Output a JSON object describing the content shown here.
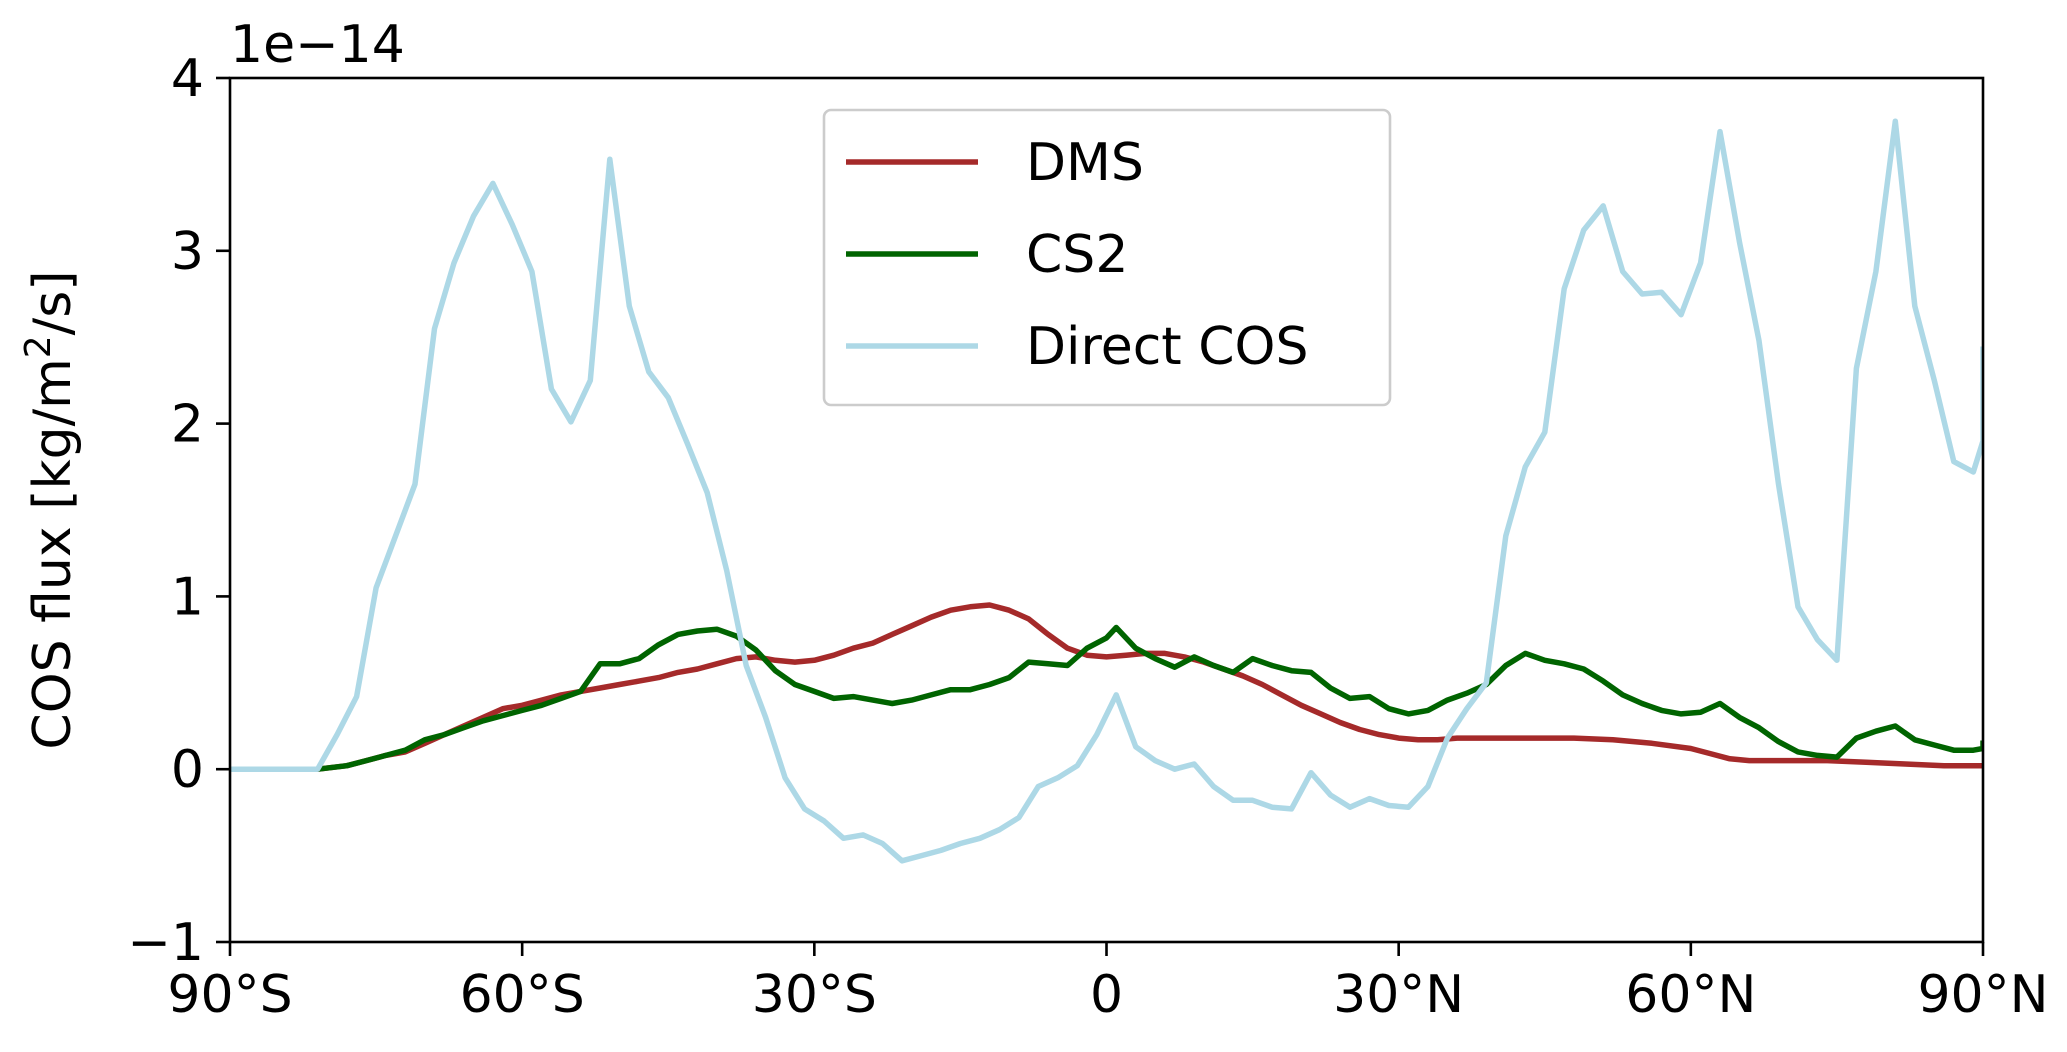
{
  "chart_data": {
    "type": "line",
    "title": "",
    "xlabel": "",
    "ylabel": "COS flux [kg/m",
    "ylabel_sup": "2",
    "ylabel_tail": "/s]",
    "offset_text": "1e−14",
    "xlim": [
      -90,
      90
    ],
    "ylim": [
      -1,
      4
    ],
    "y_scale": "1e-14",
    "legend_position": "upper center",
    "grid": false,
    "x_ticks": [
      {
        "value": -90,
        "label": "90°S"
      },
      {
        "value": -60,
        "label": "60°S"
      },
      {
        "value": -30,
        "label": "30°S"
      },
      {
        "value": 0,
        "label": "0"
      },
      {
        "value": 30,
        "label": "30°N"
      },
      {
        "value": 60,
        "label": "60°N"
      },
      {
        "value": 90,
        "label": "90°N"
      }
    ],
    "y_ticks": [
      {
        "value": -1,
        "label": "−1"
      },
      {
        "value": 0,
        "label": "0"
      },
      {
        "value": 1,
        "label": "1"
      },
      {
        "value": 2,
        "label": "2"
      },
      {
        "value": 3,
        "label": "3"
      },
      {
        "value": 4,
        "label": "4"
      }
    ],
    "series": [
      {
        "name": "DMS",
        "color": "#a52a2a",
        "points": [
          [
            -90,
            0
          ],
          [
            -88,
            0
          ],
          [
            -86,
            0
          ],
          [
            -84,
            0
          ],
          [
            -82,
            0
          ],
          [
            -81,
            0
          ],
          [
            -78,
            0.02
          ],
          [
            -76,
            0.05
          ],
          [
            -74,
            0.08
          ],
          [
            -72,
            0.1
          ],
          [
            -70,
            0.15
          ],
          [
            -68,
            0.2
          ],
          [
            -66,
            0.25
          ],
          [
            -64,
            0.3
          ],
          [
            -62,
            0.35
          ],
          [
            -60,
            0.37
          ],
          [
            -58,
            0.4
          ],
          [
            -56,
            0.43
          ],
          [
            -54,
            0.45
          ],
          [
            -52,
            0.47
          ],
          [
            -50,
            0.49
          ],
          [
            -48,
            0.51
          ],
          [
            -46,
            0.53
          ],
          [
            -44,
            0.56
          ],
          [
            -42,
            0.58
          ],
          [
            -40,
            0.61
          ],
          [
            -38,
            0.64
          ],
          [
            -36,
            0.65
          ],
          [
            -34,
            0.63
          ],
          [
            -32,
            0.62
          ],
          [
            -30,
            0.63
          ],
          [
            -28,
            0.66
          ],
          [
            -26,
            0.7
          ],
          [
            -24,
            0.73
          ],
          [
            -22,
            0.78
          ],
          [
            -20,
            0.83
          ],
          [
            -18,
            0.88
          ],
          [
            -16,
            0.92
          ],
          [
            -14,
            0.94
          ],
          [
            -12,
            0.95
          ],
          [
            -10,
            0.92
          ],
          [
            -8,
            0.87
          ],
          [
            -6,
            0.78
          ],
          [
            -4,
            0.7
          ],
          [
            -2,
            0.66
          ],
          [
            0,
            0.65
          ],
          [
            2,
            0.66
          ],
          [
            4,
            0.67
          ],
          [
            6,
            0.67
          ],
          [
            8,
            0.65
          ],
          [
            10,
            0.62
          ],
          [
            12,
            0.58
          ],
          [
            14,
            0.54
          ],
          [
            16,
            0.49
          ],
          [
            18,
            0.43
          ],
          [
            20,
            0.37
          ],
          [
            22,
            0.32
          ],
          [
            24,
            0.27
          ],
          [
            26,
            0.23
          ],
          [
            28,
            0.2
          ],
          [
            30,
            0.18
          ],
          [
            32,
            0.17
          ],
          [
            34,
            0.17
          ],
          [
            36,
            0.18
          ],
          [
            40,
            0.18
          ],
          [
            44,
            0.18
          ],
          [
            48,
            0.18
          ],
          [
            52,
            0.17
          ],
          [
            56,
            0.15
          ],
          [
            60,
            0.12
          ],
          [
            62,
            0.09
          ],
          [
            64,
            0.06
          ],
          [
            66,
            0.05
          ],
          [
            70,
            0.05
          ],
          [
            74,
            0.05
          ],
          [
            78,
            0.04
          ],
          [
            82,
            0.03
          ],
          [
            86,
            0.02
          ],
          [
            90,
            0.02
          ]
        ]
      },
      {
        "name": "CS2",
        "color": "#006400",
        "points": [
          [
            -90,
            0
          ],
          [
            -88,
            0
          ],
          [
            -86,
            0
          ],
          [
            -84,
            0
          ],
          [
            -82,
            0
          ],
          [
            -81,
            0
          ],
          [
            -78,
            0.02
          ],
          [
            -76,
            0.05
          ],
          [
            -74,
            0.08
          ],
          [
            -72,
            0.11
          ],
          [
            -70,
            0.17
          ],
          [
            -68,
            0.2
          ],
          [
            -66,
            0.24
          ],
          [
            -64,
            0.28
          ],
          [
            -62,
            0.31
          ],
          [
            -60,
            0.34
          ],
          [
            -58,
            0.37
          ],
          [
            -56,
            0.41
          ],
          [
            -54,
            0.45
          ],
          [
            -52,
            0.61
          ],
          [
            -50,
            0.61
          ],
          [
            -48,
            0.64
          ],
          [
            -46,
            0.72
          ],
          [
            -44,
            0.78
          ],
          [
            -42,
            0.8
          ],
          [
            -40,
            0.81
          ],
          [
            -38,
            0.77
          ],
          [
            -36,
            0.69
          ],
          [
            -34,
            0.57
          ],
          [
            -32,
            0.49
          ],
          [
            -30,
            0.45
          ],
          [
            -28,
            0.41
          ],
          [
            -26,
            0.42
          ],
          [
            -24,
            0.4
          ],
          [
            -22,
            0.38
          ],
          [
            -20,
            0.4
          ],
          [
            -18,
            0.43
          ],
          [
            -16,
            0.46
          ],
          [
            -14,
            0.46
          ],
          [
            -12,
            0.49
          ],
          [
            -10,
            0.53
          ],
          [
            -8,
            0.62
          ],
          [
            -6,
            0.61
          ],
          [
            -4,
            0.6
          ],
          [
            -2,
            0.7
          ],
          [
            0,
            0.76
          ],
          [
            1,
            0.82
          ],
          [
            3,
            0.7
          ],
          [
            5,
            0.64
          ],
          [
            7,
            0.59
          ],
          [
            9,
            0.65
          ],
          [
            11,
            0.6
          ],
          [
            13,
            0.56
          ],
          [
            15,
            0.64
          ],
          [
            17,
            0.6
          ],
          [
            19,
            0.57
          ],
          [
            21,
            0.56
          ],
          [
            23,
            0.47
          ],
          [
            25,
            0.41
          ],
          [
            27,
            0.42
          ],
          [
            29,
            0.35
          ],
          [
            31,
            0.32
          ],
          [
            33,
            0.34
          ],
          [
            35,
            0.4
          ],
          [
            37,
            0.44
          ],
          [
            39,
            0.49
          ],
          [
            41,
            0.6
          ],
          [
            43,
            0.67
          ],
          [
            45,
            0.63
          ],
          [
            47,
            0.61
          ],
          [
            49,
            0.58
          ],
          [
            51,
            0.51
          ],
          [
            53,
            0.43
          ],
          [
            55,
            0.38
          ],
          [
            57,
            0.34
          ],
          [
            59,
            0.32
          ],
          [
            61,
            0.33
          ],
          [
            63,
            0.38
          ],
          [
            65,
            0.3
          ],
          [
            67,
            0.24
          ],
          [
            69,
            0.16
          ],
          [
            71,
            0.1
          ],
          [
            73,
            0.08
          ],
          [
            75,
            0.07
          ],
          [
            77,
            0.18
          ],
          [
            79,
            0.22
          ],
          [
            81,
            0.25
          ],
          [
            83,
            0.17
          ],
          [
            85,
            0.14
          ],
          [
            87,
            0.11
          ],
          [
            89,
            0.11
          ],
          [
            91,
            0.12
          ],
          [
            93,
            0.14
          ],
          [
            95,
            0.15
          ],
          [
            90,
            0.15
          ]
        ]
      },
      {
        "name": "Direct COS",
        "color": "#add8e6",
        "points": [
          [
            -90,
            0
          ],
          [
            -88,
            0
          ],
          [
            -86,
            0
          ],
          [
            -84,
            0
          ],
          [
            -82,
            0
          ],
          [
            -81,
            0
          ],
          [
            -79,
            0.2
          ],
          [
            -77,
            0.42
          ],
          [
            -75,
            1.05
          ],
          [
            -73,
            1.35
          ],
          [
            -71,
            1.65
          ],
          [
            -69,
            2.55
          ],
          [
            -67,
            2.93
          ],
          [
            -65,
            3.2
          ],
          [
            -63,
            3.39
          ],
          [
            -61,
            3.15
          ],
          [
            -59,
            2.88
          ],
          [
            -57,
            2.2
          ],
          [
            -55,
            2.01
          ],
          [
            -53,
            2.25
          ],
          [
            -51,
            3.53
          ],
          [
            -49,
            2.68
          ],
          [
            -47,
            2.3
          ],
          [
            -45,
            2.15
          ],
          [
            -43,
            1.88
          ],
          [
            -41,
            1.6
          ],
          [
            -39,
            1.15
          ],
          [
            -37,
            0.6
          ],
          [
            -35,
            0.3
          ],
          [
            -33,
            -0.05
          ],
          [
            -31,
            -0.23
          ],
          [
            -29,
            -0.3
          ],
          [
            -27,
            -0.4
          ],
          [
            -25,
            -0.38
          ],
          [
            -23,
            -0.43
          ],
          [
            -21,
            -0.53
          ],
          [
            -19,
            -0.5
          ],
          [
            -17,
            -0.47
          ],
          [
            -15,
            -0.43
          ],
          [
            -13,
            -0.4
          ],
          [
            -11,
            -0.35
          ],
          [
            -9,
            -0.28
          ],
          [
            -7,
            -0.1
          ],
          [
            -5,
            -0.05
          ],
          [
            -3,
            0.02
          ],
          [
            -1,
            0.2
          ],
          [
            1,
            0.43
          ],
          [
            3,
            0.13
          ],
          [
            5,
            0.05
          ],
          [
            7,
            0.0
          ],
          [
            9,
            0.03
          ],
          [
            11,
            -0.1
          ],
          [
            13,
            -0.18
          ],
          [
            15,
            -0.18
          ],
          [
            17,
            -0.22
          ],
          [
            19,
            -0.23
          ],
          [
            21,
            -0.02
          ],
          [
            23,
            -0.15
          ],
          [
            25,
            -0.22
          ],
          [
            27,
            -0.17
          ],
          [
            29,
            -0.21
          ],
          [
            31,
            -0.22
          ],
          [
            33,
            -0.1
          ],
          [
            35,
            0.18
          ],
          [
            37,
            0.35
          ],
          [
            39,
            0.5
          ],
          [
            41,
            1.35
          ],
          [
            43,
            1.75
          ],
          [
            45,
            1.95
          ],
          [
            47,
            2.78
          ],
          [
            49,
            3.12
          ],
          [
            51,
            3.26
          ],
          [
            53,
            2.88
          ],
          [
            55,
            2.75
          ],
          [
            57,
            2.76
          ],
          [
            59,
            2.63
          ],
          [
            61,
            2.93
          ],
          [
            63,
            3.69
          ],
          [
            65,
            3.05
          ],
          [
            67,
            2.48
          ],
          [
            69,
            1.65
          ],
          [
            71,
            0.94
          ],
          [
            73,
            0.75
          ],
          [
            75,
            0.63
          ],
          [
            77,
            2.32
          ],
          [
            79,
            2.88
          ],
          [
            81,
            3.75
          ],
          [
            83,
            2.68
          ],
          [
            85,
            2.25
          ],
          [
            87,
            1.78
          ],
          [
            89,
            1.72
          ],
          [
            91,
            1.9
          ],
          [
            93,
            2.18
          ],
          [
            95,
            2.43
          ],
          [
            90,
            2.43
          ]
        ]
      }
    ]
  }
}
